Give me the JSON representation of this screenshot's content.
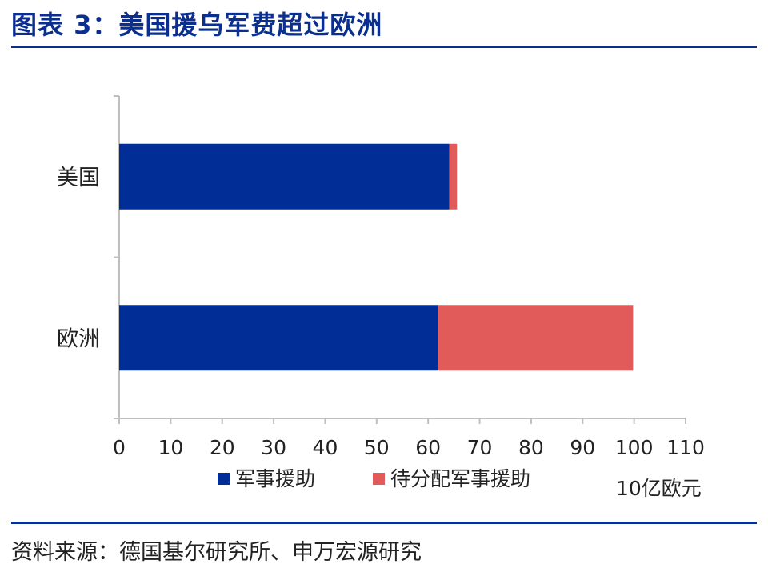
{
  "header": {
    "title": "图表 3：美国援乌军费超过欧洲"
  },
  "footer": {
    "source": "资料来源：德国基尔研究所、申万宏源研究"
  },
  "colors": {
    "accent": "#0b2f8f",
    "military": "#002d96",
    "pending": "#e25b5b"
  },
  "chart_data": {
    "type": "bar",
    "orientation": "horizontal",
    "stacked": true,
    "categories": [
      "美国",
      "欧洲"
    ],
    "series": [
      {
        "name": "军事援助",
        "values": [
          64.1,
          62.0
        ],
        "color": "#002d96"
      },
      {
        "name": "待分配军事援助",
        "values": [
          1.5,
          37.8
        ],
        "color": "#e25b5b"
      }
    ],
    "xlim": [
      0,
      110
    ],
    "xticks": [
      0,
      10,
      20,
      30,
      40,
      50,
      60,
      70,
      80,
      90,
      100,
      110
    ],
    "unit_label": "10亿欧元",
    "legend": "bottom",
    "grid": false
  }
}
